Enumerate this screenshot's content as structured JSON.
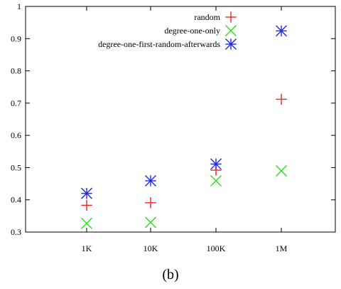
{
  "caption": "(b)",
  "chart_data": {
    "type": "scatter",
    "categories": [
      "1K",
      "10K",
      "100K",
      "1M"
    ],
    "ylim": [
      0.3,
      1.0
    ],
    "yticks": [
      0.3,
      0.4,
      0.5,
      0.6,
      0.7,
      0.8,
      0.9,
      1.0
    ],
    "ytick_labels": [
      "0.3",
      "0.4",
      "0.5",
      "0.6",
      "0.7",
      "0.8",
      "0.9",
      "1"
    ],
    "grid": false,
    "legend_position": "top-right",
    "series": [
      {
        "name": "random",
        "marker": "plus",
        "color": "#e8281c",
        "values": [
          0.383,
          0.391,
          0.492,
          0.712
        ]
      },
      {
        "name": "degree-one-only",
        "marker": "cross",
        "color": "#27e01f",
        "values": [
          0.327,
          0.33,
          0.459,
          0.49
        ]
      },
      {
        "name": "degree-one-first-random-afterwards",
        "marker": "star",
        "color": "#1a2ae8",
        "values": [
          0.42,
          0.459,
          0.511,
          0.924
        ]
      }
    ]
  }
}
